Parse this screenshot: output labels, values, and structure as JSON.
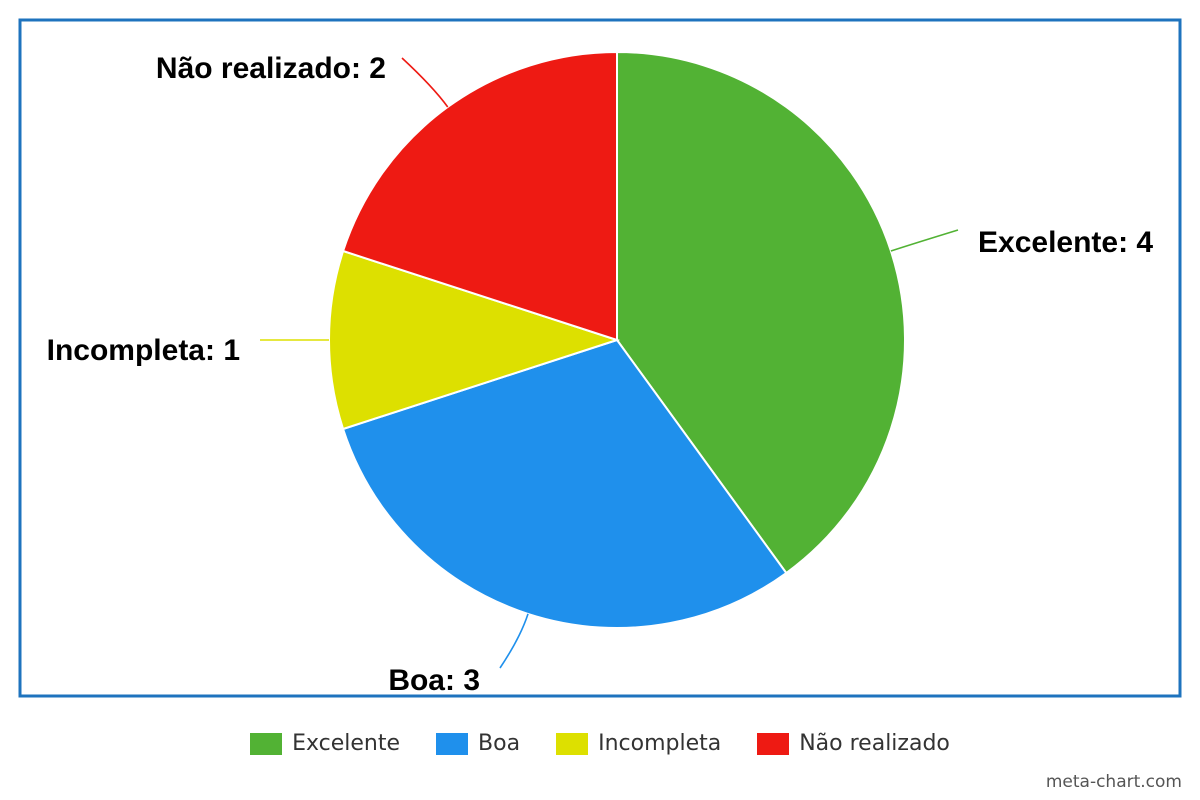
{
  "chart_data": {
    "type": "pie",
    "categories": [
      "Excelente",
      "Boa",
      "Incompleta",
      "Não realizado"
    ],
    "values": [
      4,
      3,
      1,
      2
    ],
    "colors": [
      "#52b234",
      "#1f90ec",
      "#dde000",
      "#ee1a13"
    ],
    "data_labels": [
      "Excelente: 4",
      "Boa: 3",
      "Incompleta: 1",
      "Não realizado: 2"
    ],
    "legend_placement": "bottom",
    "border_color": "#1e73be"
  },
  "credit": "meta-chart.com"
}
